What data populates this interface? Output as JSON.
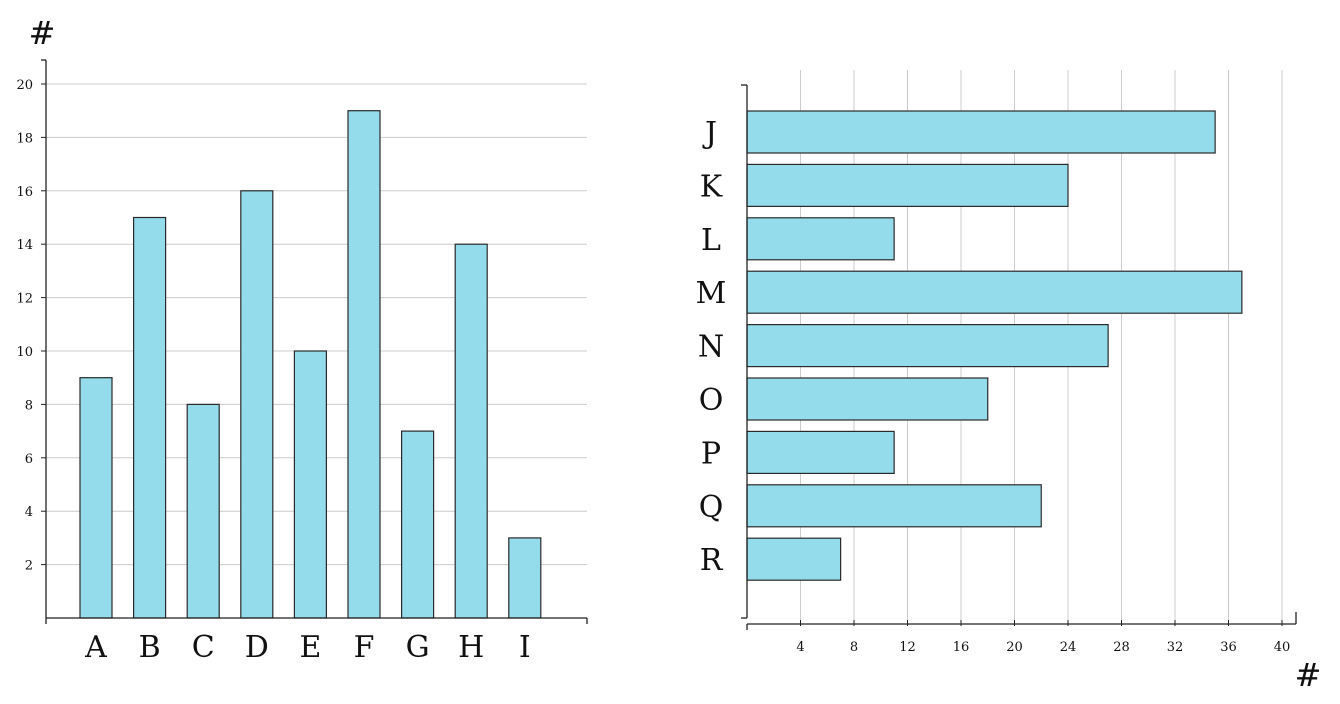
{
  "colors": {
    "bar_fill": "#94dcec",
    "bar_stroke": "#2a2a2a",
    "grid": "#cccccc",
    "axis": "#222222"
  },
  "chart_data": [
    {
      "type": "bar",
      "orientation": "vertical",
      "ylabel": "#",
      "categories": [
        "A",
        "B",
        "C",
        "D",
        "E",
        "F",
        "G",
        "H",
        "I"
      ],
      "values": [
        9,
        15,
        8,
        16,
        10,
        19,
        7,
        14,
        3
      ],
      "ylim": [
        0,
        20
      ],
      "yticks": [
        2,
        4,
        6,
        8,
        10,
        12,
        14,
        16,
        18,
        20
      ],
      "grid": "horizontal"
    },
    {
      "type": "bar",
      "orientation": "horizontal",
      "xlabel": "#",
      "categories": [
        "J",
        "K",
        "L",
        "M",
        "N",
        "O",
        "P",
        "Q",
        "R"
      ],
      "values": [
        35,
        24,
        11,
        37,
        27,
        18,
        11,
        22,
        7
      ],
      "xlim": [
        0,
        40
      ],
      "xticks": [
        4,
        8,
        12,
        16,
        20,
        24,
        28,
        32,
        36,
        40
      ],
      "grid": "vertical"
    }
  ]
}
